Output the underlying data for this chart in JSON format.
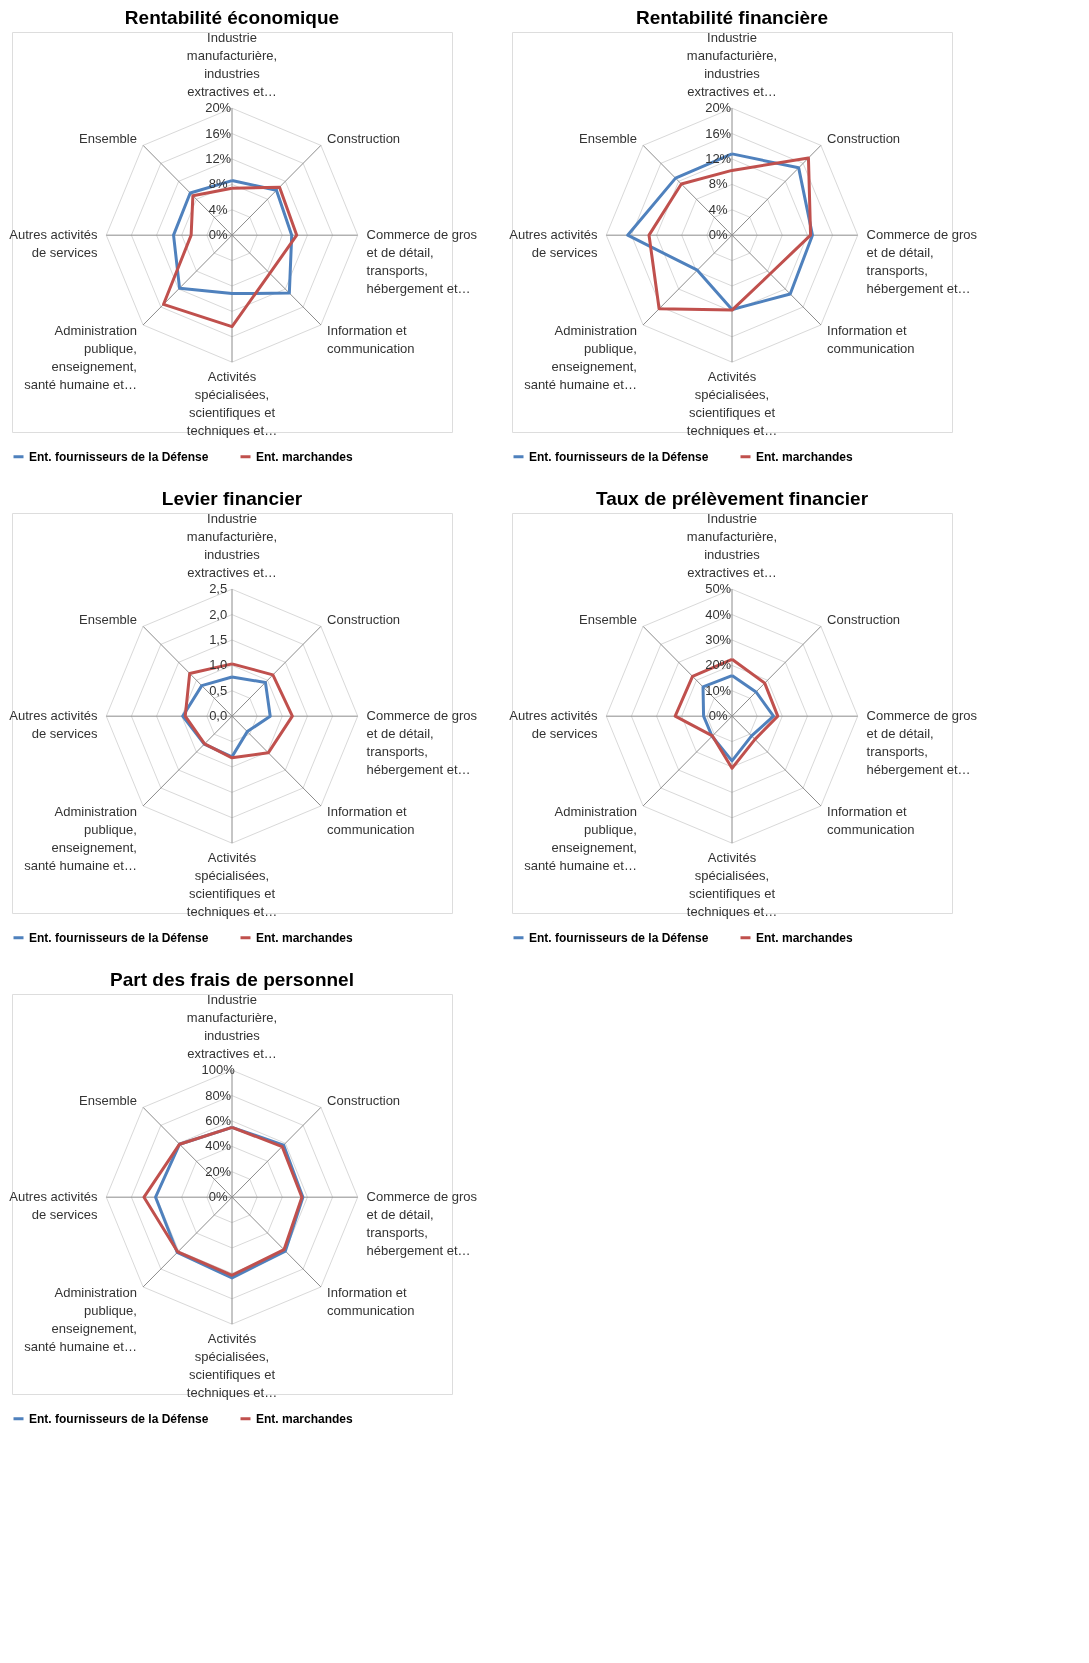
{
  "chart_data": [
    {
      "type": "radar",
      "title": "Rentabilité économique",
      "categories": [
        "Industrie manufacturière, industries extractives et…",
        "Construction",
        "Commerce de gros et de détail, transports, hébergement et…",
        "Information et communication",
        "Activités spécialisées, scientifiques et techniques et…",
        "Administration publique, enseignement, santé humaine et…",
        "Autres activités de services",
        "Ensemble"
      ],
      "ylim": [
        0,
        20
      ],
      "yticks": [
        {
          "value": 0,
          "label": "0%"
        },
        {
          "value": 4,
          "label": "4%"
        },
        {
          "value": 8,
          "label": "8%"
        },
        {
          "value": 12,
          "label": "12%"
        },
        {
          "value": 16,
          "label": "16%"
        },
        {
          "value": 20,
          "label": "20%"
        }
      ],
      "grid": true,
      "legend": "bottom",
      "series": [
        {
          "name": "Ent. fournisseurs de la Défense",
          "color": "#4f81bd",
          "values": [
            8.6,
            10.0,
            9.5,
            12.9,
            9.2,
            11.8,
            9.3,
            9.4
          ]
        },
        {
          "name": "Ent. marchandes",
          "color": "#c0504d",
          "values": [
            7.4,
            10.7,
            10.3,
            8.5,
            14.4,
            15.4,
            6.5,
            8.8
          ]
        }
      ]
    },
    {
      "type": "radar",
      "title": "Rentabilité financière",
      "categories": [
        "Industrie manufacturière, industries extractives et…",
        "Construction",
        "Commerce de gros et de détail, transports, hébergement et…",
        "Information et communication",
        "Activités spécialisées, scientifiques et techniques et…",
        "Administration publique, enseignement, santé humaine et…",
        "Autres activités de services",
        "Ensemble"
      ],
      "ylim": [
        0,
        20
      ],
      "yticks": [
        {
          "value": 0,
          "label": "0%"
        },
        {
          "value": 4,
          "label": "4%"
        },
        {
          "value": 8,
          "label": "8%"
        },
        {
          "value": 12,
          "label": "12%"
        },
        {
          "value": 16,
          "label": "16%"
        },
        {
          "value": 20,
          "label": "20%"
        }
      ],
      "grid": true,
      "legend": "bottom",
      "series": [
        {
          "name": "Ent. fournisseurs de la Défense",
          "color": "#4f81bd",
          "values": [
            12.8,
            15.0,
            12.8,
            13.1,
            11.7,
            7.8,
            16.6,
            12.7
          ]
        },
        {
          "name": "Ent. marchandes",
          "color": "#c0504d",
          "values": [
            10.2,
            17.2,
            12.5,
            8.6,
            11.8,
            16.4,
            13.2,
            11.4
          ]
        }
      ]
    },
    {
      "type": "radar",
      "title": "Levier financier",
      "categories": [
        "Industrie manufacturière, industries extractives et…",
        "Construction",
        "Commerce de gros et de détail, transports, hébergement et…",
        "Information et communication",
        "Activités spécialisées, scientifiques et techniques et…",
        "Administration publique, enseignement, santé humaine et…",
        "Autres activités de services",
        "Ensemble"
      ],
      "ylim": [
        0,
        2.5
      ],
      "yticks": [
        {
          "value": 0,
          "label": "0,0"
        },
        {
          "value": 0.5,
          "label": "0,5"
        },
        {
          "value": 1,
          "label": "1,0"
        },
        {
          "value": 1.5,
          "label": "1,5"
        },
        {
          "value": 2,
          "label": "2,0"
        },
        {
          "value": 2.5,
          "label": "2,5"
        }
      ],
      "grid": true,
      "legend": "bottom",
      "series": [
        {
          "name": "Ent. fournisseurs de la Défense",
          "color": "#4f81bd",
          "values": [
            0.77,
            0.94,
            0.76,
            0.43,
            0.8,
            0.78,
            0.98,
            0.85
          ]
        },
        {
          "name": "Ent. marchandes",
          "color": "#c0504d",
          "values": [
            1.03,
            1.15,
            1.2,
            1.02,
            0.82,
            0.77,
            0.93,
            1.19
          ]
        }
      ]
    },
    {
      "type": "radar",
      "title": "Taux de prélèvement financier",
      "categories": [
        "Industrie manufacturière, industries extractives et…",
        "Construction",
        "Commerce de gros et de détail, transports, hébergement et…",
        "Information et communication",
        "Activités spécialisées, scientifiques et techniques et…",
        "Administration publique, enseignement, santé humaine et…",
        "Autres activités de services",
        "Ensemble"
      ],
      "ylim": [
        0,
        50
      ],
      "yticks": [
        {
          "value": 0,
          "label": "0%"
        },
        {
          "value": 10,
          "label": "10%"
        },
        {
          "value": 20,
          "label": "20%"
        },
        {
          "value": 30,
          "label": "30%"
        },
        {
          "value": 40,
          "label": "40%"
        },
        {
          "value": 50,
          "label": "50%"
        }
      ],
      "grid": true,
      "legend": "bottom",
      "series": [
        {
          "name": "Ent. fournisseurs de la Défense",
          "color": "#4f81bd",
          "values": [
            16.0,
            13.5,
            16.5,
            11.0,
            17.6,
            11.2,
            11.3,
            16.3
          ]
        },
        {
          "name": "Ent. marchandes",
          "color": "#c0504d",
          "values": [
            22.4,
            18.4,
            18.2,
            12.9,
            20.5,
            11.0,
            22.6,
            22.2
          ]
        }
      ]
    },
    {
      "type": "radar",
      "title": "Part des frais de personnel",
      "categories": [
        "Industrie manufacturière, industries extractives et…",
        "Construction",
        "Commerce de gros et de détail, transports, hébergement et…",
        "Information et communication",
        "Activités spécialisées, scientifiques et techniques et…",
        "Administration publique, enseignement, santé humaine et…",
        "Autres activités de services",
        "Ensemble"
      ],
      "ylim": [
        0,
        100
      ],
      "yticks": [
        {
          "value": 0,
          "label": "0%"
        },
        {
          "value": 20,
          "label": "20%"
        },
        {
          "value": 40,
          "label": "40%"
        },
        {
          "value": 60,
          "label": "60%"
        },
        {
          "value": 80,
          "label": "80%"
        },
        {
          "value": 100,
          "label": "100%"
        }
      ],
      "grid": true,
      "legend": "bottom",
      "series": [
        {
          "name": "Ent. fournisseurs de la Défense",
          "color": "#4f81bd",
          "values": [
            55,
            58,
            56.4,
            60,
            63.6,
            61.6,
            60.8,
            59
          ]
        },
        {
          "name": "Ent. marchandes",
          "color": "#c0504d",
          "values": [
            55,
            56.4,
            55.6,
            58.5,
            61.5,
            61,
            70,
            59
          ]
        }
      ]
    }
  ]
}
